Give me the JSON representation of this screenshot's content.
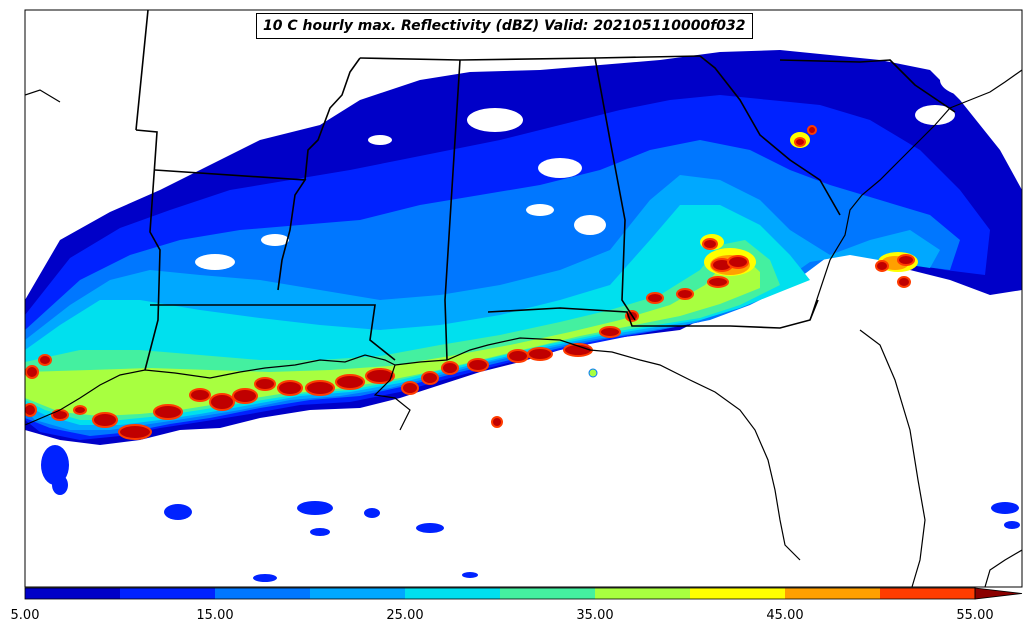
{
  "title": "10 C hourly max. Reflectivity (dBZ) Valid: 202105110000f032",
  "colorbar": {
    "ticks": [
      "5.00",
      "15.00",
      "25.00",
      "35.00",
      "45.00",
      "55.00"
    ],
    "levels": [
      5,
      10,
      15,
      20,
      25,
      30,
      35,
      40,
      45,
      50,
      55
    ],
    "colors": [
      "#0000c8",
      "#0022ff",
      "#0077ff",
      "#00a8ff",
      "#00e0ee",
      "#44f0a0",
      "#a8ff40",
      "#ffff00",
      "#ffa000",
      "#ff3c00",
      "#c00000"
    ],
    "extend": "max",
    "extend_color": "#8b0000"
  }
}
